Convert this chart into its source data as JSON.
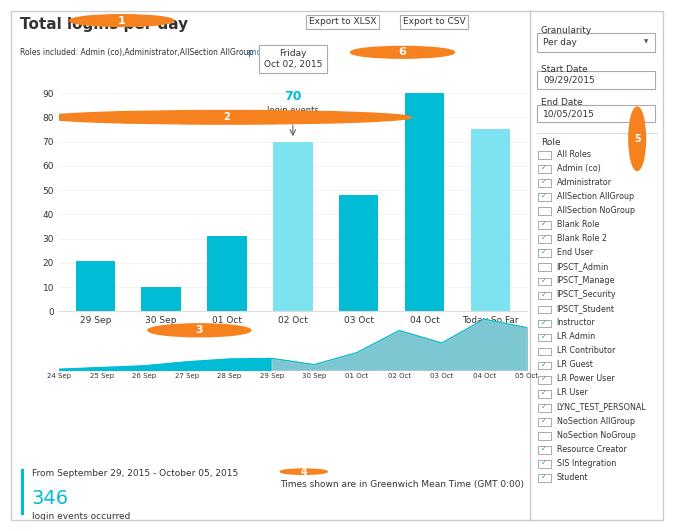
{
  "title": "Total logins per day",
  "subtitle": "Roles included: Admin (co),Administrator,AllSection AllGroup",
  "subtitle_link": "and 15 more...",
  "bar_labels": [
    "29 Sep",
    "30 Sep",
    "01 Oct",
    "02 Oct",
    "03 Oct",
    "04 Oct",
    "Today So Far"
  ],
  "bar_values": [
    21,
    10,
    31,
    70,
    48,
    90,
    75
  ],
  "bar_highlight": [
    false,
    false,
    false,
    true,
    false,
    false,
    true
  ],
  "ylim": [
    0,
    100
  ],
  "yticks": [
    0,
    10,
    20,
    30,
    40,
    50,
    60,
    70,
    80,
    90
  ],
  "tooltip_bar": 3,
  "tooltip_day": "Friday",
  "tooltip_date": "Oct 02, 2015",
  "tooltip_value": 70,
  "tooltip_label": "login events",
  "mini_chart_labels": [
    "24 Sep",
    "25 Sep",
    "26 Sep",
    "27 Sep",
    "28 Sep",
    "29 Sep",
    "30 Sep",
    "01 Oct",
    "02 Oct",
    "03 Oct",
    "04 Oct",
    "05 Oct"
  ],
  "mini_values": [
    2,
    5,
    8,
    15,
    20,
    21,
    10,
    31,
    70,
    48,
    90,
    75
  ],
  "export_xlsx": "Export to XLSX",
  "export_csv": "Export to CSV",
  "granularity_label": "Granularity",
  "granularity_value": "Per day",
  "start_date_label": "Start Date",
  "start_date_value": "09/29/2015",
  "end_date_label": "End Date",
  "end_date_value": "10/05/2015",
  "role_label": "Role",
  "roles": [
    {
      "name": "All Roles",
      "checked": false
    },
    {
      "name": "Admin (co)",
      "checked": true
    },
    {
      "name": "Administrator",
      "checked": true
    },
    {
      "name": "AllSection AllGroup",
      "checked": true
    },
    {
      "name": "AllSection NoGroup",
      "checked": false
    },
    {
      "name": "Blank Role",
      "checked": true
    },
    {
      "name": "Blank Role 2",
      "checked": true
    },
    {
      "name": "End User",
      "checked": true
    },
    {
      "name": "IPSCT_Admin",
      "checked": false
    },
    {
      "name": "IPSCT_Manage",
      "checked": true
    },
    {
      "name": "IPSCT_Security",
      "checked": true
    },
    {
      "name": "IPSCT_Student",
      "checked": false
    },
    {
      "name": "Instructor",
      "checked": true
    },
    {
      "name": "LR Admin",
      "checked": true
    },
    {
      "name": "LR Contributor",
      "checked": false
    },
    {
      "name": "LR Guest",
      "checked": true
    },
    {
      "name": "LR Power User",
      "checked": true
    },
    {
      "name": "LR User",
      "checked": true
    },
    {
      "name": "LYNC_TEST_PERSONAL",
      "checked": true
    },
    {
      "name": "NoSection AllGroup",
      "checked": true
    },
    {
      "name": "NoSection NoGroup",
      "checked": false
    },
    {
      "name": "Resource Creator",
      "checked": true
    },
    {
      "name": "SIS Integration",
      "checked": true
    },
    {
      "name": "Student",
      "checked": true
    }
  ],
  "summary_date_range": "From September 29, 2015 - October 05, 2015",
  "summary_count": "346",
  "summary_label": "login events occurred",
  "timezone_note": "Times shown are in Greenwich Mean Time (GMT 0:00)",
  "orange_color": "#f5821e",
  "teal_color": "#00bcd4",
  "light_teal": "#7de3f0",
  "bg_color": "#ffffff",
  "panel_bg": "#f5f5f5",
  "border_color": "#cccccc",
  "text_color": "#333333",
  "link_color": "#337ab7",
  "mini_split_index": 5
}
